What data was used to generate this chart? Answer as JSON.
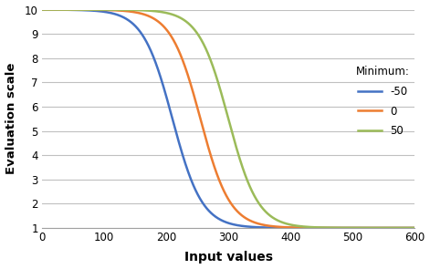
{
  "title": "",
  "xlabel": "Input values",
  "ylabel": "Evaluation scale",
  "xlim": [
    0,
    600
  ],
  "ylim": [
    1,
    10
  ],
  "xticks": [
    0,
    100,
    200,
    300,
    400,
    500,
    600
  ],
  "yticks": [
    1,
    2,
    3,
    4,
    5,
    6,
    7,
    8,
    9,
    10
  ],
  "legend_title": "Minimum:",
  "series": [
    {
      "label": "-50",
      "color": "#4472C4",
      "midpoint": 210,
      "steepness": 0.042
    },
    {
      "label": "0",
      "color": "#ED7D31",
      "midpoint": 255,
      "steepness": 0.042
    },
    {
      "label": "50",
      "color": "#9BBB59",
      "midpoint": 300,
      "steepness": 0.042
    }
  ],
  "background_color": "#FFFFFF",
  "grid_color": "#C0C0C0",
  "figsize": [
    4.71,
    2.95
  ],
  "dpi": 100
}
